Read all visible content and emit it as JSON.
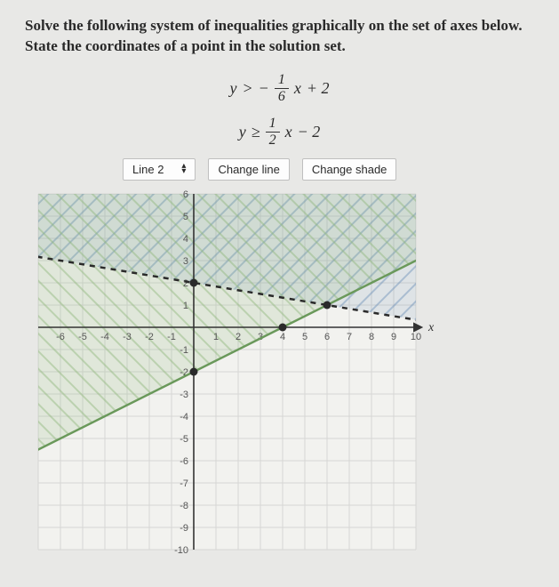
{
  "instructions": {
    "line1": "Solve the following system of inequalities graphically on the set of axes below.",
    "line2": "State the coordinates of a point in the solution set."
  },
  "inequalities": {
    "first": {
      "lhs": "y",
      "op": ">",
      "negsign": "−",
      "num": "1",
      "den": "6",
      "xvar": "x",
      "tail": " + 2"
    },
    "second": {
      "lhs": "y",
      "op": "≥",
      "num": "1",
      "den": "2",
      "xvar": "x",
      "tail": " − 2"
    }
  },
  "controls": {
    "selectLabel": "Line 2",
    "changeLine": "Change line",
    "changeShade": "Change shade"
  },
  "graph": {
    "xmin": -7,
    "xmax": 10,
    "ymin": -10,
    "ymax": 6,
    "xticks": [
      -6,
      -5,
      -4,
      -3,
      -2,
      -1,
      1,
      2,
      3,
      4,
      5,
      6,
      7,
      8,
      9,
      10
    ],
    "yticks": [
      -10,
      -9,
      -8,
      -7,
      -6,
      -5,
      -4,
      -3,
      -2,
      -1,
      1,
      2,
      3,
      4,
      5,
      6
    ],
    "xlabel": "x",
    "gridColor": "#d6d6d4",
    "axisColor": "#333333",
    "line1": {
      "slope": -0.1667,
      "intercept": 2,
      "color": "#2a2a2a",
      "dash": "6 6",
      "shade": "#6b8fb7",
      "hatchAngle": 45
    },
    "line2": {
      "slope": 0.5,
      "intercept": -2,
      "color": "#6a995b",
      "dash": "",
      "shade": "#8fb77a",
      "hatchAngle": -45
    },
    "points": [
      {
        "x": 0,
        "y": 2
      },
      {
        "x": 6,
        "y": 1
      },
      {
        "x": 0,
        "y": -2
      },
      {
        "x": 4,
        "y": 0
      }
    ]
  }
}
